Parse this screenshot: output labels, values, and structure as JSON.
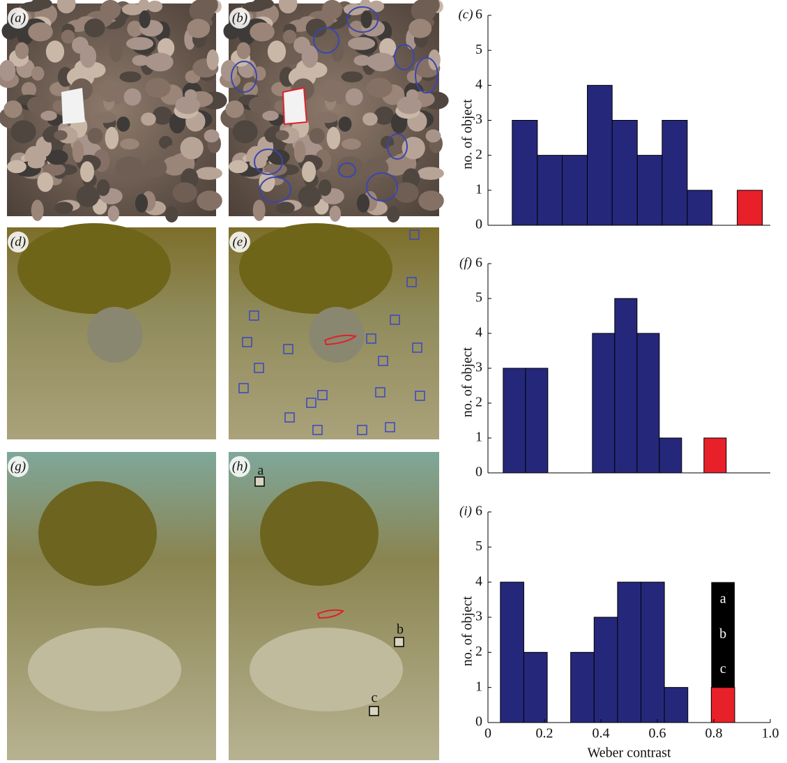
{
  "photos": [
    {
      "label": "(a)"
    },
    {
      "label": "(b)"
    },
    {
      "label": "(d)"
    },
    {
      "label": "(e)"
    },
    {
      "label": "(g)"
    },
    {
      "label": "(h)",
      "markers": [
        "a",
        "b",
        "c"
      ]
    }
  ],
  "chart_data": [
    {
      "type": "histogram",
      "label": "(c)",
      "ylabel": "no. of object",
      "xlim": [
        0,
        1
      ],
      "ylim": [
        0,
        6
      ],
      "yticks": [
        0,
        1,
        2,
        3,
        4,
        5,
        6
      ],
      "bins": [
        0.086,
        0.175,
        0.263,
        0.352,
        0.44,
        0.529,
        0.617,
        0.706,
        0.794,
        0.883,
        0.972
      ],
      "values": [
        3,
        2,
        2,
        4,
        3,
        2,
        3,
        1,
        0,
        1
      ],
      "colors": [
        "#25287a",
        "#25287a",
        "#25287a",
        "#25287a",
        "#25287a",
        "#25287a",
        "#25287a",
        "#25287a",
        "#25287a",
        "#e8202a"
      ]
    },
    {
      "type": "histogram",
      "label": "(f)",
      "ylabel": "no. of object",
      "xlim": [
        0,
        1
      ],
      "ylim": [
        0,
        6
      ],
      "yticks": [
        0,
        1,
        2,
        3,
        4,
        5,
        6
      ],
      "bins": [
        0.054,
        0.133,
        0.212,
        0.291,
        0.37,
        0.449,
        0.528,
        0.607,
        0.686,
        0.765,
        0.844
      ],
      "values": [
        3,
        3,
        0,
        0,
        4,
        5,
        4,
        1,
        0,
        1
      ],
      "colors": [
        "#25287a",
        "#25287a",
        "#25287a",
        "#25287a",
        "#25287a",
        "#25287a",
        "#25287a",
        "#25287a",
        "#25287a",
        "#e8202a"
      ]
    },
    {
      "type": "histogram",
      "label": "(i)",
      "ylabel": "no. of object",
      "xlabel": "Weber contrast",
      "xlim": [
        0,
        1
      ],
      "ylim": [
        0,
        6
      ],
      "yticks": [
        0,
        1,
        2,
        3,
        4,
        5,
        6
      ],
      "xticks": [
        0,
        0.2,
        0.4,
        0.6,
        0.8,
        {
          "value": 1,
          "label": "1.0"
        }
      ],
      "bins": [
        0.044,
        0.127,
        0.21,
        0.293,
        0.376,
        0.459,
        0.542,
        0.625,
        0.708,
        0.791,
        0.874
      ],
      "values": [
        4,
        2,
        0,
        2,
        3,
        4,
        4,
        1,
        0,
        1
      ],
      "colors": [
        "#25287a",
        "#25287a",
        "#25287a",
        "#25287a",
        "#25287a",
        "#25287a",
        "#25287a",
        "#25287a",
        "#25287a",
        "#e8202a"
      ],
      "stack": {
        "color": "#000000",
        "values": [
          0,
          0,
          0,
          0,
          0,
          0,
          0,
          0,
          0,
          3
        ],
        "labels": [
          "a",
          "b",
          "c"
        ]
      }
    }
  ]
}
